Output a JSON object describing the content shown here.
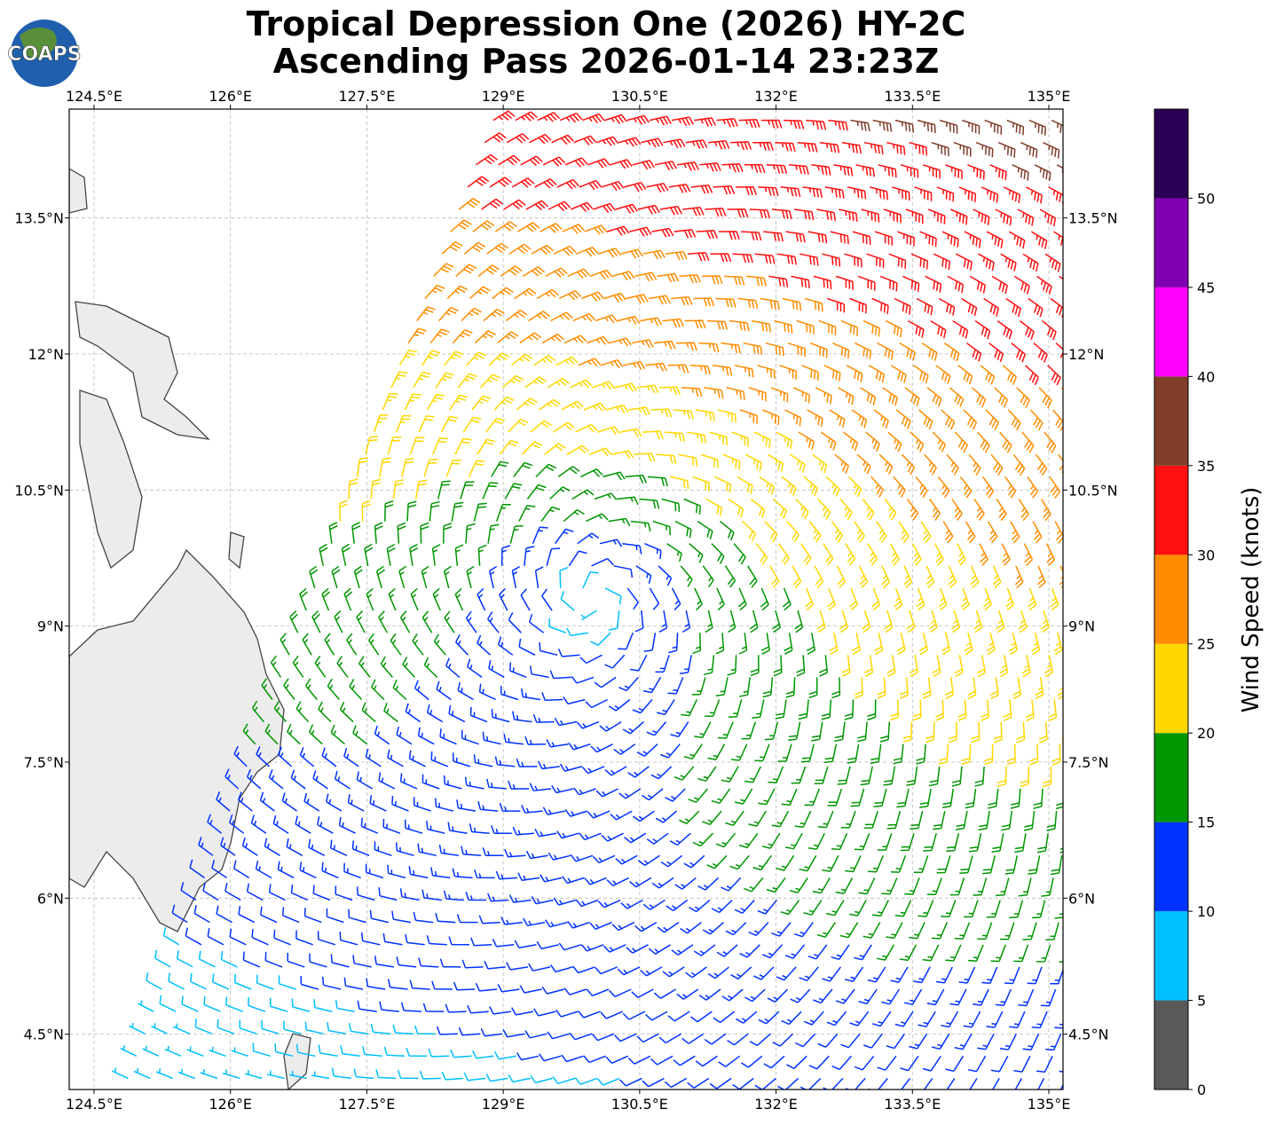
{
  "map": {
    "title": "Tropical Depression One (2026) HY-2C",
    "subtitle": "Ascending Pass 2026-01-14 23:23Z",
    "logo": "COAPS",
    "xlim": [
      124.227,
      135.156
    ],
    "ylim": [
      3.89,
      14.7
    ],
    "xticks": [
      {
        "value": 124.5,
        "label": "124.5°E"
      },
      {
        "value": 126,
        "label": "126°E"
      },
      {
        "value": 127.5,
        "label": "127.5°E"
      },
      {
        "value": 129,
        "label": "129°E"
      },
      {
        "value": 130.5,
        "label": "130.5°E"
      },
      {
        "value": 132,
        "label": "132°E"
      },
      {
        "value": 133.5,
        "label": "133.5°E"
      },
      {
        "value": 135,
        "label": "135°E"
      }
    ],
    "yticks": [
      {
        "value": 4.5,
        "label": "4.5°N"
      },
      {
        "value": 6,
        "label": "6°N"
      },
      {
        "value": 7.5,
        "label": "7.5°N"
      },
      {
        "value": 9,
        "label": "9°N"
      },
      {
        "value": 10.5,
        "label": "10.5°N"
      },
      {
        "value": 12,
        "label": "12°N"
      },
      {
        "value": 13.5,
        "label": "13.5°N"
      }
    ],
    "grid": true,
    "colorbar": {
      "label": "Wind Speed (knots)",
      "lim": [
        0,
        55
      ],
      "ticks": [
        0,
        5,
        10,
        15,
        20,
        25,
        30,
        35,
        40,
        45,
        50
      ],
      "colors": [
        "#595959",
        "#00bfff",
        "#0033ff",
        "#009600",
        "#ffd700",
        "#ff8c00",
        "#ff1010",
        "#803d2a",
        "#ff00ff",
        "#8000b0",
        "#2a0055"
      ]
    }
  }
}
